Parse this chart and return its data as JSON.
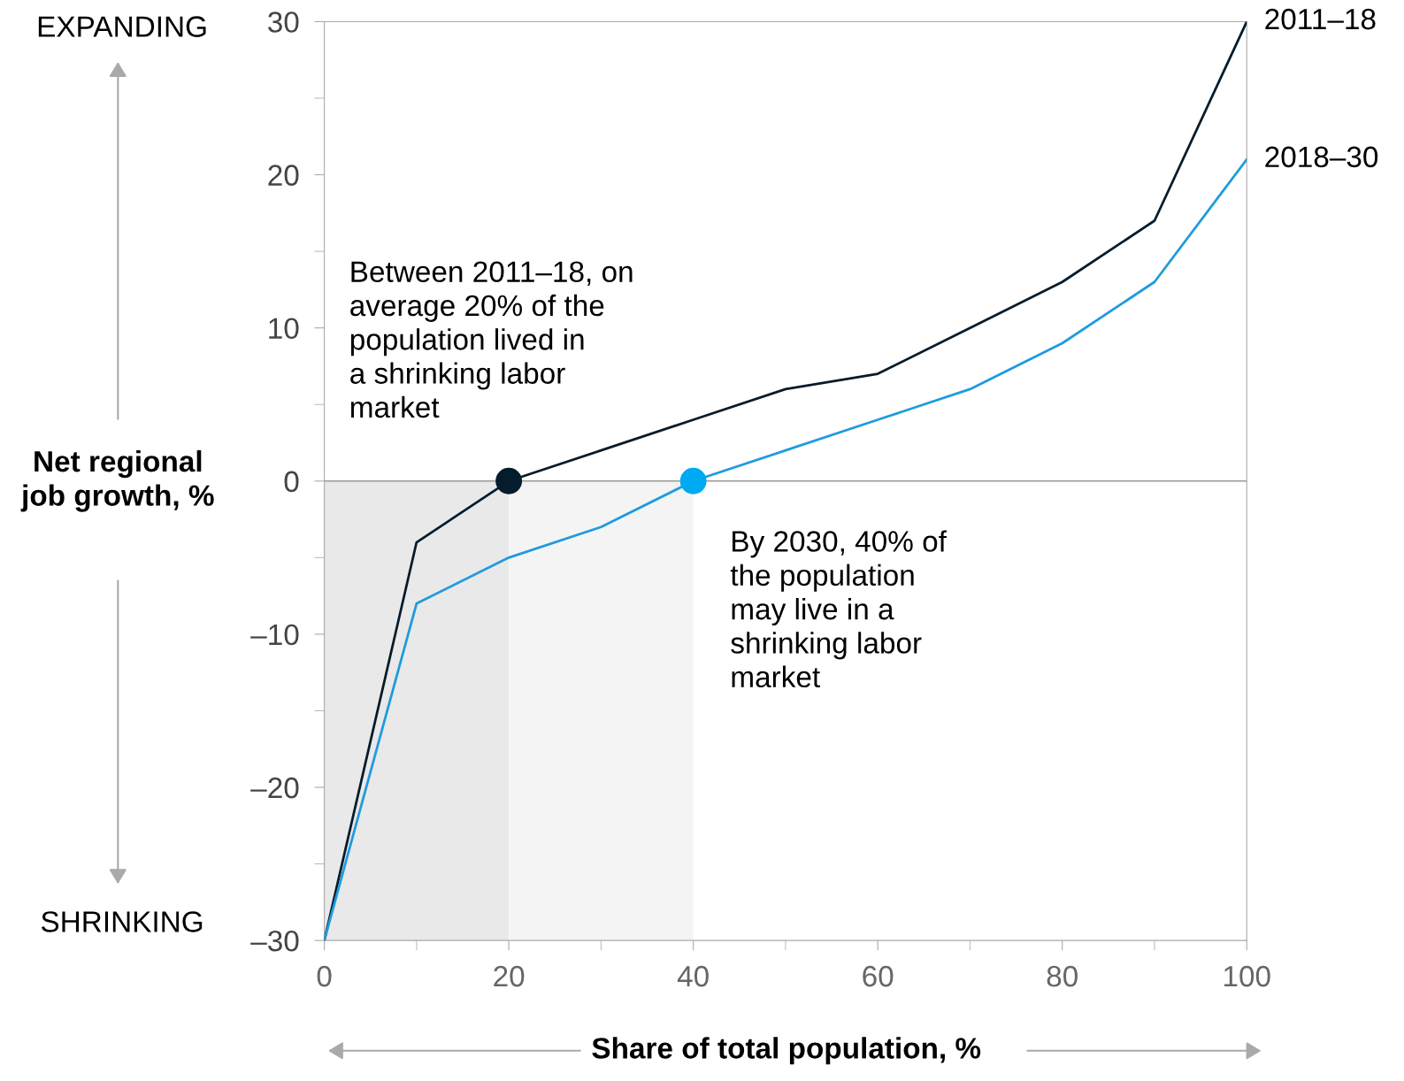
{
  "chart_data": {
    "type": "line",
    "xlabel": "Share of total population, %",
    "ylabel": "Net regional job growth, %",
    "x": [
      0,
      10,
      20,
      30,
      40,
      50,
      60,
      70,
      80,
      90,
      100
    ],
    "series": [
      {
        "name": "2011–18",
        "color": "#051c2c",
        "values": [
          -30,
          -4,
          0,
          2,
          4,
          6,
          7,
          10,
          13,
          17,
          30
        ]
      },
      {
        "name": "2018–30",
        "color": "#1f9bde",
        "values": [
          -30,
          -8,
          -5,
          -3,
          0,
          2,
          4,
          6,
          9,
          13,
          21
        ]
      },
      {
        "type": "scatter",
        "marker": "circle",
        "x": [
          20,
          40
        ],
        "values": [
          0,
          0
        ],
        "colors": [
          "#051c2c",
          "#00a9f4"
        ]
      }
    ],
    "xlim": [
      0,
      100
    ],
    "xticks": [
      0,
      {
        "value": 10,
        "label": null
      },
      20,
      {
        "value": 30,
        "label": null
      },
      40,
      {
        "value": 50,
        "label": null
      },
      60,
      {
        "value": 70,
        "label": null
      },
      80,
      {
        "value": 90,
        "label": null
      },
      100
    ],
    "ylim": [
      -30,
      30
    ],
    "yticks": [
      {
        "value": -30,
        "label": "–30"
      },
      {
        "value": -25,
        "label": null
      },
      {
        "value": -20,
        "label": "–20"
      },
      {
        "value": -15,
        "label": null
      },
      {
        "value": -10,
        "label": "–10"
      },
      {
        "value": -5,
        "label": null
      },
      0,
      {
        "value": 5,
        "label": null
      },
      10,
      {
        "value": 15,
        "label": null
      },
      20,
      {
        "value": 25,
        "label": null
      },
      30
    ],
    "ref_lines": [
      {
        "axis": "y",
        "value": 0,
        "color": "#999999"
      }
    ],
    "bands": [
      {
        "axis": "x",
        "from": 0,
        "to": 20,
        "color": "#e9e9e9"
      },
      {
        "axis": "x",
        "from": 20,
        "to": 40,
        "color": "#f4f4f4"
      }
    ],
    "annotations": [
      "Between 2011–18, on average 20% of the population lived in a shrinking labor market",
      {
        "text": "By 2030, 40% of the population may live in a shrinking labor market",
        "x": 40,
        "y": 0
      },
      "EXPANDING",
      "SHRINKING"
    ],
    "grid": false,
    "legend": false,
    "marker": "none",
    "line_style": "solid"
  }
}
